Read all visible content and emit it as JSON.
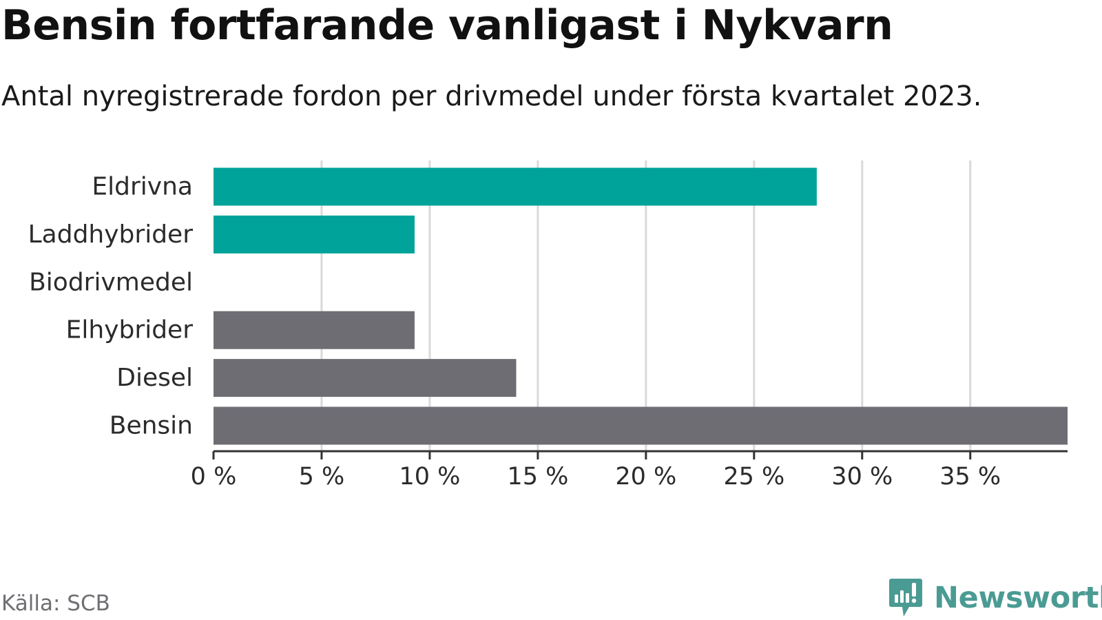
{
  "header": {
    "title": "Bensin fortfarande vanligast i Nykvarn",
    "subtitle": "Antal nyregistrerade fordon per drivmedel under första kvartalet 2023."
  },
  "footer": {
    "source": "Källa: SCB",
    "brand": "Newsworthy"
  },
  "icons": {
    "brand": "newsworthy-logo-icon"
  },
  "colors": {
    "highlight": "#00a39a",
    "neutral": "#6e6d74",
    "grid": "#d9d9d9",
    "axis": "#333333",
    "brand": "#4a9b93"
  },
  "chart_data": {
    "type": "bar",
    "orientation": "horizontal",
    "categories": [
      "Eldrivna",
      "Laddhybrider",
      "Biodrivmedel",
      "Elhybrider",
      "Diesel",
      "Bensin"
    ],
    "values": [
      27.9,
      9.3,
      0,
      9.3,
      14.0,
      39.5
    ],
    "bar_colors": [
      "#00a39a",
      "#00a39a",
      "#00a39a",
      "#6e6d74",
      "#6e6d74",
      "#6e6d74"
    ],
    "ticks": [
      0,
      5,
      10,
      15,
      20,
      25,
      30,
      35
    ],
    "tick_labels": [
      "0 %",
      "5 %",
      "10 %",
      "15 %",
      "20 %",
      "25 %",
      "30 %",
      "35 %"
    ],
    "xlim": [
      0,
      39.5
    ],
    "unit": "%",
    "grid": true,
    "xlabel": "",
    "ylabel": ""
  }
}
